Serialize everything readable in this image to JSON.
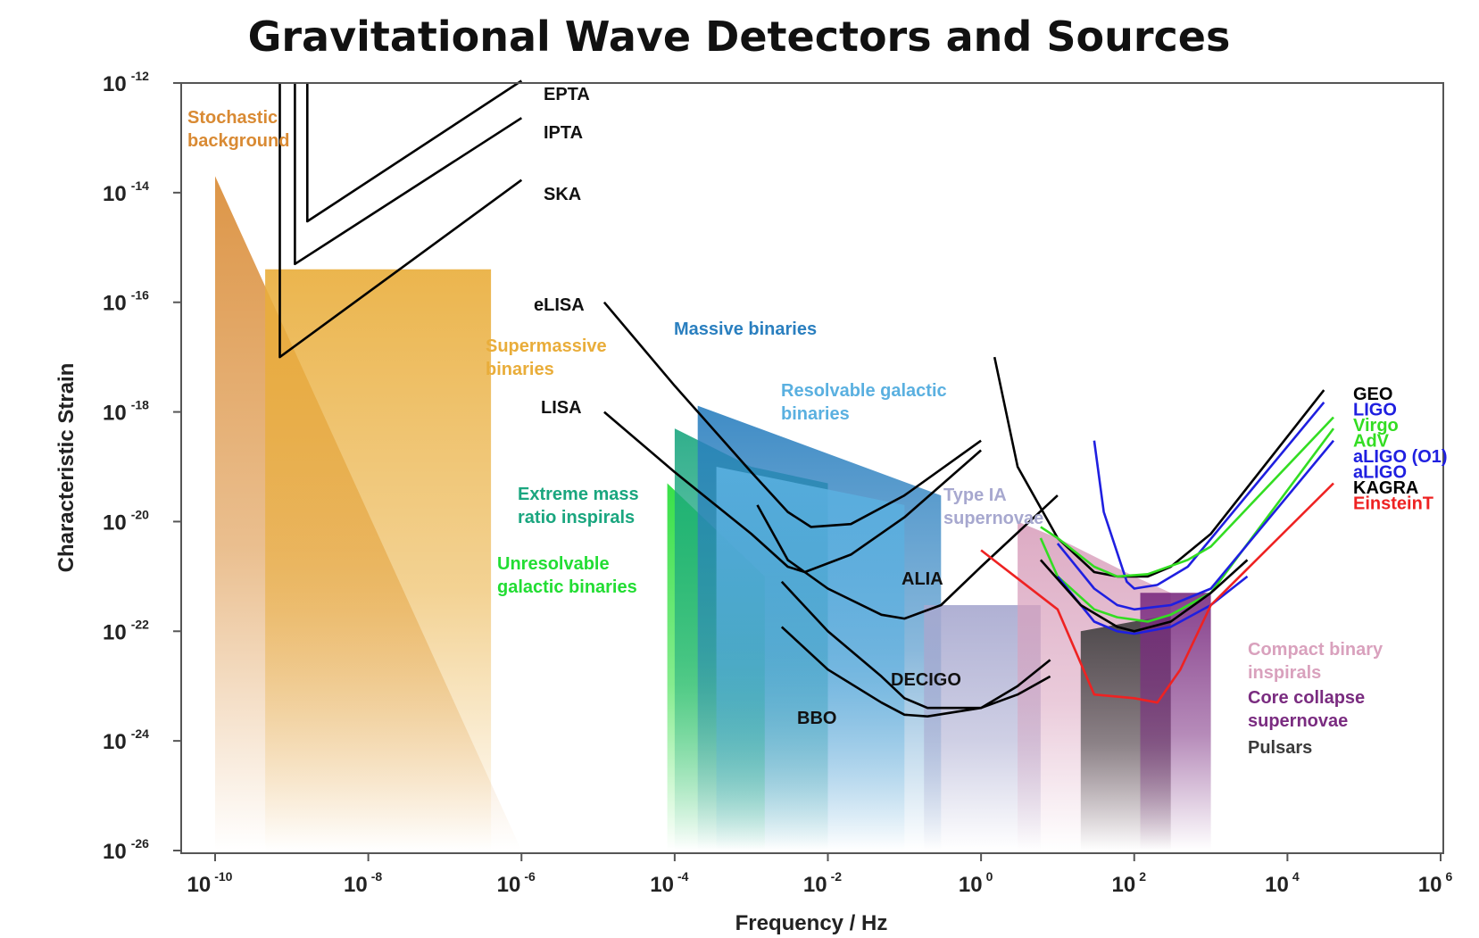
{
  "chart_data": {
    "type": "line",
    "title": "Gravitational Wave Detectors and Sources",
    "xlabel": "Frequency / Hz",
    "ylabel": "Characteristic Strain",
    "x_scale": "log",
    "y_scale": "log",
    "xlim": [
      1e-10,
      1000000.0
    ],
    "ylim": [
      1e-26,
      1e-12
    ],
    "x_ticks": [
      {
        "base": "10",
        "exp": "-10",
        "value": 1e-10
      },
      {
        "base": "10",
        "exp": "-8",
        "value": 1e-08
      },
      {
        "base": "10",
        "exp": "-6",
        "value": 1e-06
      },
      {
        "base": "10",
        "exp": "-4",
        "value": 0.0001
      },
      {
        "base": "10",
        "exp": "-2",
        "value": 0.01
      },
      {
        "base": "10",
        "exp": "0",
        "value": 1
      },
      {
        "base": "10",
        "exp": "2",
        "value": 100.0
      },
      {
        "base": "10",
        "exp": "4",
        "value": 10000.0
      },
      {
        "base": "10",
        "exp": "6",
        "value": 1000000.0
      }
    ],
    "y_ticks": [
      {
        "base": "10",
        "exp": "-12",
        "value": 1e-12
      },
      {
        "base": "10",
        "exp": "-14",
        "value": 1e-14
      },
      {
        "base": "10",
        "exp": "-16",
        "value": 1e-16
      },
      {
        "base": "10",
        "exp": "-18",
        "value": 1e-18
      },
      {
        "base": "10",
        "exp": "-20",
        "value": 1e-20
      },
      {
        "base": "10",
        "exp": "-22",
        "value": 1e-22
      },
      {
        "base": "10",
        "exp": "-24",
        "value": 1e-24
      },
      {
        "base": "10",
        "exp": "-26",
        "value": 1e-26
      }
    ],
    "grid": false,
    "legend_position": "right",
    "sources": [
      {
        "name": "Stochastic background",
        "label_lines": [
          "Stochastic",
          "background"
        ],
        "color": "#d98a33",
        "polygon": [
          [
            1e-10,
            2e-14
          ],
          [
            1e-06,
            1e-26
          ],
          [
            1e-10,
            1e-26
          ]
        ]
      },
      {
        "name": "Supermassive binaries",
        "label_lines": [
          "Supermassive",
          "binaries"
        ],
        "color": "#e9ad3a",
        "polygon": [
          [
            4.5e-10,
            4e-16
          ],
          [
            4e-07,
            4e-16
          ],
          [
            4e-07,
            1e-26
          ],
          [
            4.5e-10,
            1e-26
          ]
        ]
      },
      {
        "name": "Unresolvable galactic binaries",
        "label_lines": [
          "Unresolvable",
          "galactic binaries"
        ],
        "color": "#22dd33",
        "polygon": [
          [
            8e-05,
            5e-20
          ],
          [
            0.0015,
            1e-21
          ],
          [
            0.0015,
            1e-26
          ],
          [
            8e-05,
            1e-26
          ]
        ]
      },
      {
        "name": "Extreme mass ratio inspirals",
        "label_lines": [
          "Extreme mass",
          "ratio inspirals"
        ],
        "color": "#1aa67f",
        "polygon": [
          [
            0.0001,
            5e-19
          ],
          [
            0.001,
            1e-19
          ],
          [
            0.01,
            5e-20
          ],
          [
            0.01,
            1e-26
          ],
          [
            0.0001,
            1e-26
          ]
        ]
      },
      {
        "name": "Massive binaries",
        "label_lines": [
          "Massive binaries"
        ],
        "color": "#2a7fbf",
        "polygon": [
          [
            0.0002,
            1.3e-18
          ],
          [
            0.3,
            3e-20
          ],
          [
            0.3,
            1e-26
          ],
          [
            0.0002,
            1e-26
          ]
        ]
      },
      {
        "name": "Resolvable galactic binaries",
        "label_lines": [
          "Resolvable galactic",
          "binaries"
        ],
        "color": "#5ab0e0",
        "polygon": [
          [
            0.00035,
            1e-19
          ],
          [
            0.1,
            2e-20
          ],
          [
            0.1,
            1e-26
          ],
          [
            0.00035,
            1e-26
          ]
        ]
      },
      {
        "name": "Type IA supernovae",
        "label_lines": [
          "Type IA",
          "supernovae"
        ],
        "color": "#a7a8cf",
        "polygon": [
          [
            0.18,
            3e-22
          ],
          [
            6,
            3e-22
          ],
          [
            6,
            1e-26
          ],
          [
            0.18,
            1e-26
          ]
        ]
      },
      {
        "name": "Compact binary inspirals",
        "label_lines": [
          "Compact binary",
          "inspirals"
        ],
        "color": "#d9a1bd",
        "polygon": [
          [
            3,
            1e-20
          ],
          [
            10,
            5e-21
          ],
          [
            100,
            1e-21
          ],
          [
            300,
            5e-22
          ],
          [
            300,
            1e-26
          ],
          [
            3,
            1e-26
          ]
        ]
      },
      {
        "name": "Pulsars",
        "label_lines": [
          "Pulsars"
        ],
        "color": "#3b3b3b",
        "polygon": [
          [
            20,
            1e-22
          ],
          [
            300,
            2e-22
          ],
          [
            300,
            1e-26
          ],
          [
            20,
            1e-26
          ]
        ]
      },
      {
        "name": "Core collapse supernovae",
        "label_lines": [
          "Core collapse",
          "supernovae"
        ],
        "color": "#7a2c80",
        "polygon": [
          [
            120,
            5e-22
          ],
          [
            1000,
            5e-22
          ],
          [
            1000,
            1e-26
          ],
          [
            120,
            1e-26
          ]
        ]
      }
    ],
    "detectors": [
      {
        "name": "EPTA",
        "color": "#000000",
        "points": [
          [
            1.6e-09,
            1e-12
          ],
          [
            1.6e-09,
            3e-15
          ],
          [
            1e-06,
            1.1e-12
          ]
        ]
      },
      {
        "name": "IPTA",
        "color": "#000000",
        "points": [
          [
            1.1e-09,
            1e-12
          ],
          [
            1.1e-09,
            5e-16
          ],
          [
            1e-06,
            2.3e-13
          ]
        ]
      },
      {
        "name": "SKA",
        "color": "#000000",
        "points": [
          [
            7e-10,
            1e-12
          ],
          [
            7e-10,
            1e-17
          ],
          [
            1e-06,
            1.7e-14
          ]
        ]
      },
      {
        "name": "eLISA",
        "color": "#000000",
        "points": [
          [
            1.2e-05,
            1e-16
          ],
          [
            0.0001,
            3e-18
          ],
          [
            0.001,
            8e-20
          ],
          [
            0.003,
            1.5e-20
          ],
          [
            0.006,
            8e-21
          ],
          [
            0.02,
            9e-21
          ],
          [
            0.1,
            3e-20
          ],
          [
            1,
            3e-19
          ]
        ]
      },
      {
        "name": "LISA",
        "color": "#000000",
        "points": [
          [
            1.2e-05,
            1e-18
          ],
          [
            0.0001,
            8e-20
          ],
          [
            0.001,
            6e-21
          ],
          [
            0.003,
            1.5e-21
          ],
          [
            0.005,
            1.2e-21
          ],
          [
            0.02,
            2.5e-21
          ],
          [
            0.1,
            1.2e-20
          ],
          [
            1,
            2e-19
          ]
        ]
      },
      {
        "name": "ALIA",
        "color": "#000000",
        "points": [
          [
            0.0012,
            2e-20
          ],
          [
            0.003,
            2e-21
          ],
          [
            0.01,
            6e-22
          ],
          [
            0.05,
            2e-22
          ],
          [
            0.1,
            1.7e-22
          ],
          [
            0.3,
            3e-22
          ],
          [
            1,
            1.5e-21
          ],
          [
            10,
            3e-20
          ]
        ]
      },
      {
        "name": "DECIGO",
        "color": "#000000",
        "points": [
          [
            0.0025,
            8e-22
          ],
          [
            0.01,
            1e-22
          ],
          [
            0.05,
            1.5e-23
          ],
          [
            0.1,
            6e-24
          ],
          [
            0.2,
            4e-24
          ],
          [
            1,
            4e-24
          ],
          [
            3,
            7e-24
          ],
          [
            8,
            1.5e-23
          ]
        ]
      },
      {
        "name": "BBO",
        "color": "#000000",
        "points": [
          [
            0.0025,
            1.2e-22
          ],
          [
            0.01,
            2e-23
          ],
          [
            0.05,
            5e-24
          ],
          [
            0.1,
            3e-24
          ],
          [
            0.2,
            2.8e-24
          ],
          [
            1,
            4e-24
          ],
          [
            3,
            1e-23
          ],
          [
            8,
            3e-23
          ]
        ]
      },
      {
        "name": "GEO",
        "color": "#000000",
        "points": [
          [
            1.5,
            1e-17
          ],
          [
            3,
            1e-19
          ],
          [
            10,
            5e-21
          ],
          [
            30,
            1.2e-21
          ],
          [
            60,
            1e-21
          ],
          [
            150,
            1e-21
          ],
          [
            300,
            1.5e-21
          ],
          [
            1000,
            6e-21
          ],
          [
            30000.0,
            2.5e-18
          ]
        ]
      },
      {
        "name": "LIGO",
        "color": "#1f1fe0",
        "points": [
          [
            30,
            3e-19
          ],
          [
            40,
            1.5e-20
          ],
          [
            80,
            8e-22
          ],
          [
            100,
            6e-22
          ],
          [
            200,
            7e-22
          ],
          [
            500,
            1.5e-21
          ],
          [
            30000.0,
            1.5e-18
          ]
        ]
      },
      {
        "name": "Virgo",
        "color": "#33dd22",
        "points": [
          [
            6,
            8e-21
          ],
          [
            10,
            5e-21
          ],
          [
            30,
            1.5e-21
          ],
          [
            60,
            1e-21
          ],
          [
            150,
            1.1e-21
          ],
          [
            500,
            2e-21
          ],
          [
            1000,
            3.5e-21
          ],
          [
            40000.0,
            8e-19
          ]
        ]
      },
      {
        "name": "AdV",
        "color": "#33dd22",
        "points": [
          [
            6,
            5e-21
          ],
          [
            10,
            1e-21
          ],
          [
            30,
            2.5e-22
          ],
          [
            60,
            1.8e-22
          ],
          [
            150,
            1.5e-22
          ],
          [
            300,
            2e-22
          ],
          [
            1000,
            5e-22
          ],
          [
            40000.0,
            5e-19
          ]
        ]
      },
      {
        "name": "aLIGO (O1)",
        "color": "#1f1fe0",
        "points": [
          [
            10,
            4e-21
          ],
          [
            30,
            6e-22
          ],
          [
            60,
            3e-22
          ],
          [
            100,
            2.5e-22
          ],
          [
            300,
            3e-22
          ],
          [
            1000,
            6e-22
          ],
          [
            40000.0,
            3e-19
          ]
        ]
      },
      {
        "name": "aLIGO",
        "color": "#1f1fe0",
        "points": [
          [
            10,
            1e-21
          ],
          [
            30,
            1.5e-22
          ],
          [
            60,
            1e-22
          ],
          [
            100,
            9e-23
          ],
          [
            300,
            1.2e-22
          ],
          [
            1000,
            3e-22
          ],
          [
            3000.0,
            1e-21
          ]
        ]
      },
      {
        "name": "KAGRA",
        "color": "#000000",
        "points": [
          [
            6,
            2e-21
          ],
          [
            20,
            3e-22
          ],
          [
            60,
            1.2e-22
          ],
          [
            100,
            1e-22
          ],
          [
            300,
            1.5e-22
          ],
          [
            1000,
            5e-22
          ],
          [
            3000.0,
            2e-21
          ]
        ]
      },
      {
        "name": "EinsteinT",
        "color": "#ee2222",
        "points": [
          [
            1,
            3e-21
          ],
          [
            10,
            2.5e-22
          ],
          [
            30,
            7e-24
          ],
          [
            100,
            6e-24
          ],
          [
            200,
            5e-24
          ],
          [
            400,
            2e-23
          ],
          [
            1000,
            3e-22
          ],
          [
            40000.0,
            5e-20
          ]
        ]
      }
    ],
    "legend": [
      {
        "label": "GEO",
        "color": "#000000"
      },
      {
        "label": "LIGO",
        "color": "#1f1fe0"
      },
      {
        "label": "Virgo",
        "color": "#33dd22"
      },
      {
        "label": "AdV",
        "color": "#33dd22"
      },
      {
        "label": "aLIGO (O1)",
        "color": "#1f1fe0"
      },
      {
        "label": "aLIGO",
        "color": "#1f1fe0"
      },
      {
        "label": "KAGRA",
        "color": "#000000"
      },
      {
        "label": "EinsteinT",
        "color": "#ee2222"
      }
    ]
  }
}
